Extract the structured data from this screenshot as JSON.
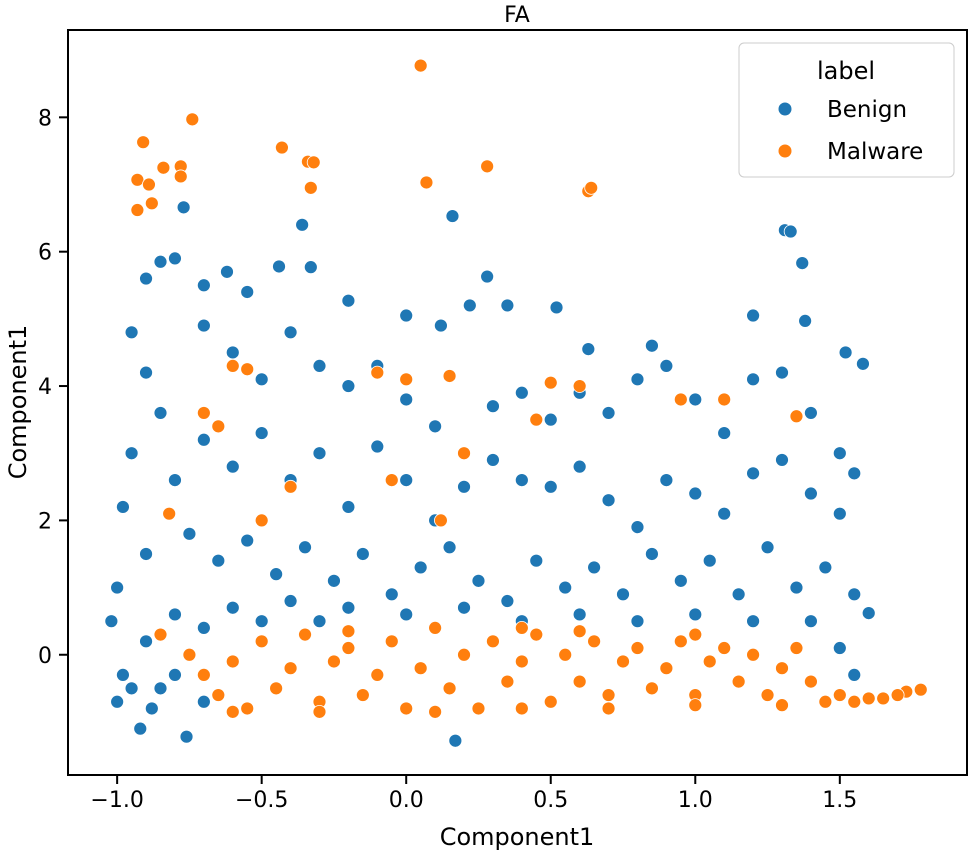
{
  "chart_data": {
    "type": "scatter",
    "title": "FA",
    "xlabel": "Component1",
    "ylabel": "Component1",
    "xlim": [
      -1.17,
      1.94
    ],
    "ylim": [
      -1.79,
      9.3
    ],
    "xticks": [
      -1.0,
      -0.5,
      0.0,
      0.5,
      1.0,
      1.5
    ],
    "xtick_labels": [
      "−1.0",
      "−0.5",
      "0.0",
      "0.5",
      "1.0",
      "1.5"
    ],
    "yticks": [
      0,
      2,
      4,
      6,
      8
    ],
    "ytick_labels": [
      "0",
      "2",
      "4",
      "6",
      "8"
    ],
    "grid": false,
    "legend": {
      "title": "label",
      "placement": "top-right"
    },
    "series": [
      {
        "name": "Benign",
        "color": "#1f77b4",
        "points": [
          [
            -0.77,
            6.66
          ],
          [
            -0.36,
            6.4
          ],
          [
            0.16,
            6.53
          ],
          [
            1.31,
            6.32
          ],
          [
            1.33,
            6.3
          ],
          [
            1.37,
            5.83
          ],
          [
            -0.76,
            -1.22
          ],
          [
            0.17,
            -1.28
          ],
          [
            -0.92,
            -1.1
          ],
          [
            1.6,
            0.62
          ],
          [
            -0.85,
            5.85
          ],
          [
            -0.8,
            5.9
          ],
          [
            -0.9,
            5.6
          ],
          [
            -0.7,
            5.5
          ],
          [
            -0.62,
            5.7
          ],
          [
            -0.55,
            5.4
          ],
          [
            -0.44,
            5.78
          ],
          [
            -0.33,
            5.77
          ],
          [
            -0.2,
            5.27
          ],
          [
            0.0,
            5.05
          ],
          [
            0.12,
            4.9
          ],
          [
            0.22,
            5.2
          ],
          [
            0.28,
            5.63
          ],
          [
            0.35,
            5.2
          ],
          [
            0.52,
            5.17
          ],
          [
            0.63,
            4.55
          ],
          [
            0.85,
            4.6
          ],
          [
            1.2,
            5.05
          ],
          [
            1.38,
            4.97
          ],
          [
            1.52,
            4.5
          ],
          [
            1.58,
            4.33
          ],
          [
            -0.95,
            4.8
          ],
          [
            -0.9,
            4.2
          ],
          [
            -0.85,
            3.6
          ],
          [
            -0.95,
            3.0
          ],
          [
            -0.8,
            2.6
          ],
          [
            -0.98,
            2.2
          ],
          [
            -0.9,
            1.5
          ],
          [
            -1.0,
            1.0
          ],
          [
            -1.02,
            0.5
          ],
          [
            -0.98,
            -0.3
          ],
          [
            -1.0,
            -0.7
          ],
          [
            -0.9,
            0.2
          ],
          [
            -0.85,
            -0.5
          ],
          [
            -0.7,
            4.9
          ],
          [
            -0.6,
            4.5
          ],
          [
            -0.5,
            4.1
          ],
          [
            -0.4,
            4.8
          ],
          [
            -0.3,
            4.3
          ],
          [
            -0.2,
            4.0
          ],
          [
            -0.1,
            4.3
          ],
          [
            0.0,
            3.8
          ],
          [
            0.1,
            3.4
          ],
          [
            0.2,
            3.0
          ],
          [
            0.3,
            3.7
          ],
          [
            0.4,
            3.9
          ],
          [
            0.5,
            3.5
          ],
          [
            0.6,
            3.9
          ],
          [
            0.7,
            3.6
          ],
          [
            0.8,
            4.1
          ],
          [
            0.9,
            4.3
          ],
          [
            1.0,
            3.8
          ],
          [
            1.1,
            3.3
          ],
          [
            1.2,
            4.1
          ],
          [
            1.3,
            4.2
          ],
          [
            1.4,
            3.6
          ],
          [
            1.5,
            3.0
          ],
          [
            1.55,
            2.7
          ],
          [
            -0.7,
            3.2
          ],
          [
            -0.6,
            2.8
          ],
          [
            -0.5,
            3.3
          ],
          [
            -0.4,
            2.6
          ],
          [
            -0.3,
            3.0
          ],
          [
            -0.2,
            2.2
          ],
          [
            -0.1,
            3.1
          ],
          [
            0.0,
            2.6
          ],
          [
            0.1,
            2.0
          ],
          [
            0.2,
            2.5
          ],
          [
            0.3,
            2.9
          ],
          [
            0.4,
            2.6
          ],
          [
            0.5,
            2.5
          ],
          [
            0.6,
            2.8
          ],
          [
            0.7,
            2.3
          ],
          [
            0.8,
            1.9
          ],
          [
            0.9,
            2.6
          ],
          [
            1.0,
            2.4
          ],
          [
            1.1,
            2.1
          ],
          [
            1.2,
            2.7
          ],
          [
            1.3,
            2.9
          ],
          [
            1.4,
            2.4
          ],
          [
            1.5,
            2.1
          ],
          [
            -0.75,
            1.8
          ],
          [
            -0.65,
            1.4
          ],
          [
            -0.55,
            1.7
          ],
          [
            -0.45,
            1.2
          ],
          [
            -0.35,
            1.6
          ],
          [
            -0.25,
            1.1
          ],
          [
            -0.15,
            1.5
          ],
          [
            -0.05,
            0.9
          ],
          [
            0.05,
            1.3
          ],
          [
            0.15,
            1.6
          ],
          [
            0.25,
            1.1
          ],
          [
            0.35,
            0.8
          ],
          [
            0.45,
            1.4
          ],
          [
            0.55,
            1.0
          ],
          [
            0.65,
            1.3
          ],
          [
            0.75,
            0.9
          ],
          [
            0.85,
            1.5
          ],
          [
            0.95,
            1.1
          ],
          [
            1.05,
            1.4
          ],
          [
            1.15,
            0.9
          ],
          [
            1.25,
            1.6
          ],
          [
            1.35,
            1.0
          ],
          [
            1.45,
            1.3
          ],
          [
            1.55,
            0.9
          ],
          [
            -0.8,
            0.6
          ],
          [
            -0.7,
            0.4
          ],
          [
            -0.6,
            0.7
          ],
          [
            -0.5,
            0.5
          ],
          [
            -0.4,
            0.8
          ],
          [
            -0.3,
            0.5
          ],
          [
            -0.2,
            0.7
          ],
          [
            0.0,
            0.6
          ],
          [
            0.2,
            0.7
          ],
          [
            0.4,
            0.5
          ],
          [
            0.6,
            0.6
          ],
          [
            0.8,
            0.5
          ],
          [
            1.0,
            0.6
          ],
          [
            1.2,
            0.5
          ],
          [
            1.4,
            0.5
          ],
          [
            1.5,
            0.1
          ],
          [
            1.55,
            -0.3
          ],
          [
            1.5,
            -0.6
          ],
          [
            -0.8,
            -0.3
          ],
          [
            -0.7,
            -0.7
          ],
          [
            -0.95,
            -0.5
          ],
          [
            -0.88,
            -0.8
          ]
        ]
      },
      {
        "name": "Malware",
        "color": "#ff7f0e",
        "points": [
          [
            -0.93,
            6.62
          ],
          [
            -0.91,
            7.63
          ],
          [
            -0.93,
            7.07
          ],
          [
            -0.89,
            7.0
          ],
          [
            -0.88,
            6.72
          ],
          [
            -0.84,
            7.25
          ],
          [
            -0.78,
            7.27
          ],
          [
            -0.78,
            7.12
          ],
          [
            -0.74,
            7.97
          ],
          [
            -0.43,
            7.55
          ],
          [
            -0.34,
            7.34
          ],
          [
            -0.32,
            7.33
          ],
          [
            -0.33,
            6.95
          ],
          [
            0.05,
            8.77
          ],
          [
            0.07,
            7.03
          ],
          [
            0.28,
            7.27
          ],
          [
            0.63,
            6.9
          ],
          [
            0.64,
            6.95
          ],
          [
            1.78,
            -0.52
          ],
          [
            1.73,
            -0.55
          ],
          [
            -0.6,
            4.3
          ],
          [
            -0.55,
            4.25
          ],
          [
            -0.1,
            4.2
          ],
          [
            0.0,
            4.1
          ],
          [
            0.15,
            4.15
          ],
          [
            0.5,
            4.05
          ],
          [
            0.6,
            4.0
          ],
          [
            0.95,
            3.8
          ],
          [
            1.1,
            3.8
          ],
          [
            1.35,
            3.55
          ],
          [
            -0.7,
            3.6
          ],
          [
            -0.65,
            3.4
          ],
          [
            -0.5,
            2.0
          ],
          [
            -0.82,
            2.1
          ],
          [
            -0.4,
            2.5
          ],
          [
            -0.05,
            2.6
          ],
          [
            0.12,
            2.0
          ],
          [
            0.2,
            3.0
          ],
          [
            0.45,
            3.5
          ],
          [
            -0.85,
            0.3
          ],
          [
            -0.75,
            0.0
          ],
          [
            -0.7,
            -0.3
          ],
          [
            -0.65,
            -0.6
          ],
          [
            -0.6,
            -0.1
          ],
          [
            -0.55,
            -0.8
          ],
          [
            -0.5,
            0.2
          ],
          [
            -0.45,
            -0.5
          ],
          [
            -0.4,
            -0.2
          ],
          [
            -0.35,
            0.3
          ],
          [
            -0.3,
            -0.7
          ],
          [
            -0.25,
            -0.1
          ],
          [
            -0.2,
            0.1
          ],
          [
            -0.15,
            -0.6
          ],
          [
            -0.1,
            -0.3
          ],
          [
            -0.05,
            0.2
          ],
          [
            0.0,
            -0.8
          ],
          [
            0.05,
            -0.2
          ],
          [
            0.1,
            0.4
          ],
          [
            0.15,
            -0.5
          ],
          [
            0.2,
            0.0
          ],
          [
            0.25,
            -0.8
          ],
          [
            0.3,
            0.2
          ],
          [
            0.35,
            -0.4
          ],
          [
            0.4,
            -0.1
          ],
          [
            0.45,
            0.3
          ],
          [
            0.5,
            -0.7
          ],
          [
            0.55,
            0.0
          ],
          [
            0.6,
            -0.4
          ],
          [
            0.65,
            0.2
          ],
          [
            0.7,
            -0.6
          ],
          [
            0.75,
            -0.1
          ],
          [
            0.8,
            0.1
          ],
          [
            0.85,
            -0.5
          ],
          [
            0.9,
            -0.2
          ],
          [
            0.95,
            0.2
          ],
          [
            1.0,
            -0.6
          ],
          [
            1.05,
            -0.1
          ],
          [
            1.1,
            0.1
          ],
          [
            1.15,
            -0.4
          ],
          [
            1.2,
            0.0
          ],
          [
            1.25,
            -0.6
          ],
          [
            1.3,
            -0.2
          ],
          [
            1.35,
            0.1
          ],
          [
            1.4,
            -0.4
          ],
          [
            1.45,
            -0.7
          ],
          [
            1.5,
            -0.6
          ],
          [
            1.55,
            -0.7
          ],
          [
            1.6,
            -0.65
          ],
          [
            1.65,
            -0.65
          ],
          [
            1.7,
            -0.6
          ],
          [
            -0.3,
            -0.85
          ],
          [
            0.1,
            -0.85
          ],
          [
            0.4,
            -0.8
          ],
          [
            0.7,
            -0.8
          ],
          [
            1.0,
            -0.75
          ],
          [
            1.3,
            -0.75
          ],
          [
            -0.6,
            -0.85
          ],
          [
            -0.2,
            0.35
          ],
          [
            0.4,
            0.4
          ],
          [
            0.6,
            0.35
          ],
          [
            1.0,
            0.3
          ]
        ]
      }
    ]
  }
}
